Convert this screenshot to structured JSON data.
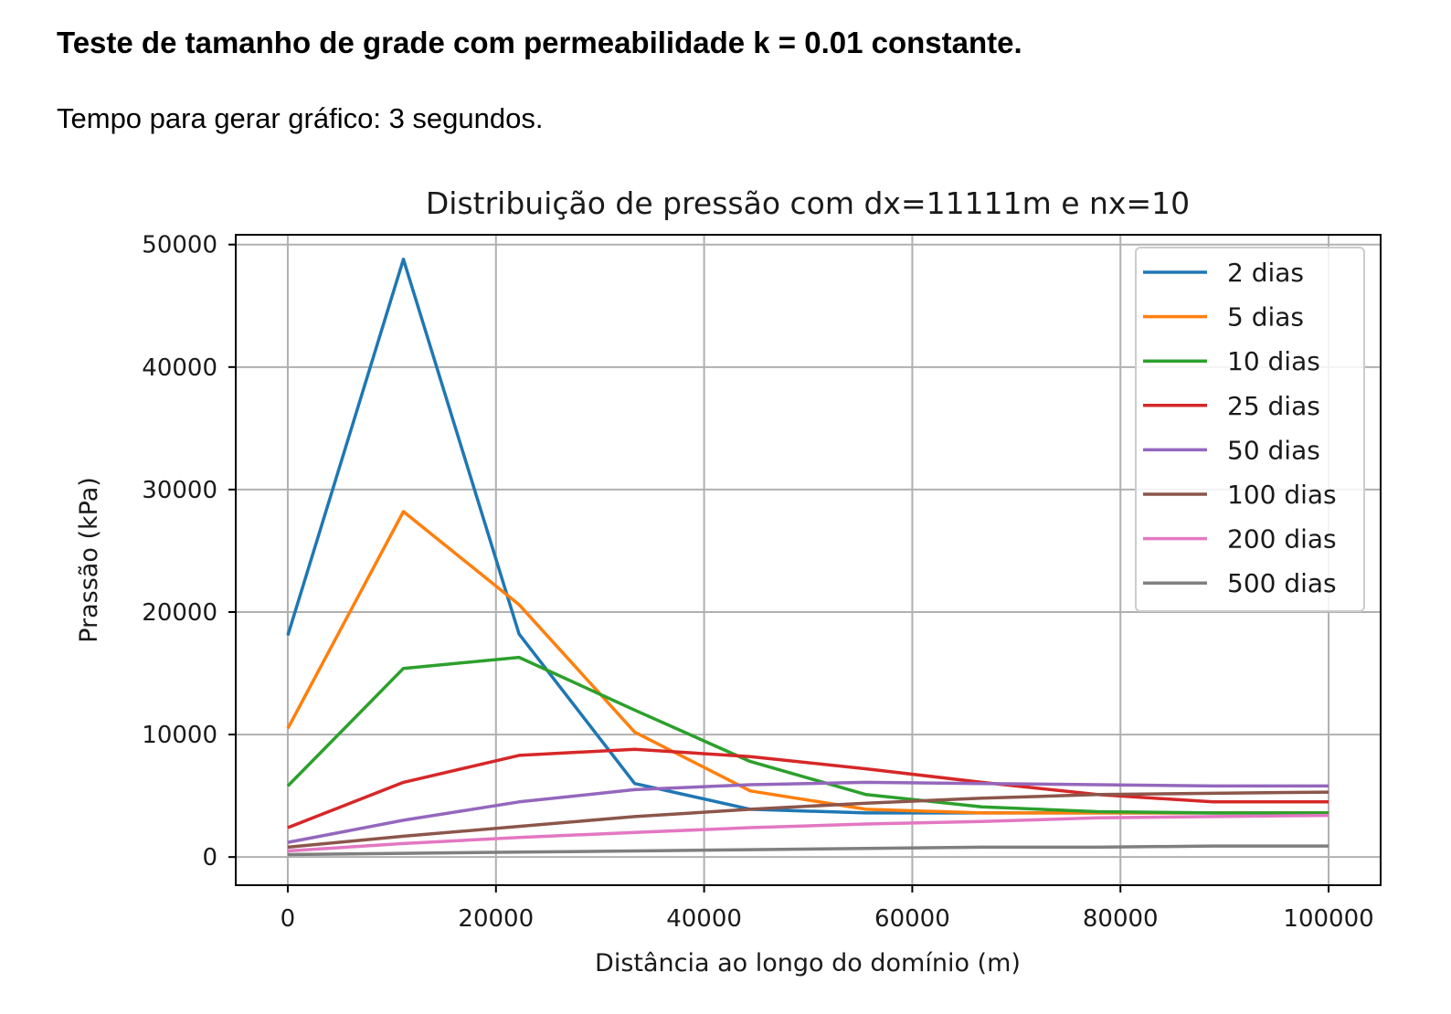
{
  "document": {
    "heading": "Teste de tamanho de grade com permeabilidade k = 0.01 constante.",
    "subheading": "Tempo para gerar gráfico: 3 segundos."
  },
  "chart_data": {
    "type": "line",
    "title": "Distribuição de pressão com dx=11111m e nx=10",
    "xlabel": "Distância ao longo do domínio (m)",
    "ylabel": "Prassão (kPa)",
    "xlim": [
      -5000,
      105000
    ],
    "ylim": [
      -2300,
      50800
    ],
    "xticks": [
      0,
      20000,
      40000,
      60000,
      80000,
      100000
    ],
    "xtick_labels": [
      "0",
      "20000",
      "40000",
      "60000",
      "80000",
      "100000"
    ],
    "yticks": [
      0,
      10000,
      20000,
      30000,
      40000,
      50000
    ],
    "ytick_labels": [
      "0",
      "10000",
      "20000",
      "30000",
      "40000",
      "50000"
    ],
    "grid": true,
    "legend_position": "top-right",
    "x": [
      0,
      11111,
      22222,
      33333,
      44444,
      55556,
      66667,
      77778,
      88889,
      100000
    ],
    "series": [
      {
        "name": "2 dias",
        "color": "#1f77b4",
        "values": [
          18100,
          48800,
          18200,
          6000,
          3900,
          3600,
          3600,
          3600,
          3600,
          3600
        ]
      },
      {
        "name": "5 dias",
        "color": "#ff7f0e",
        "values": [
          10500,
          28200,
          20600,
          10200,
          5400,
          3900,
          3600,
          3600,
          3600,
          3600
        ]
      },
      {
        "name": "10 dias",
        "color": "#2ca02c",
        "values": [
          5800,
          15400,
          16300,
          12000,
          7800,
          5100,
          4100,
          3700,
          3600,
          3600
        ]
      },
      {
        "name": "25 dias",
        "color": "#d62728",
        "values": [
          2400,
          6100,
          8300,
          8800,
          8200,
          7200,
          6100,
          5100,
          4500,
          4500
        ]
      },
      {
        "name": "50 dias",
        "color": "#9467bd",
        "values": [
          1200,
          3000,
          4500,
          5500,
          5900,
          6100,
          6000,
          5900,
          5800,
          5800
        ]
      },
      {
        "name": "100 dias",
        "color": "#8c564b",
        "values": [
          800,
          1700,
          2500,
          3300,
          3900,
          4400,
          4800,
          5100,
          5200,
          5300
        ]
      },
      {
        "name": "200 dias",
        "color": "#e377c2",
        "values": [
          500,
          1100,
          1600,
          2000,
          2400,
          2700,
          2900,
          3200,
          3300,
          3400
        ]
      },
      {
        "name": "500 dias",
        "color": "#7f7f7f",
        "values": [
          200,
          300,
          400,
          500,
          600,
          700,
          800,
          800,
          900,
          900
        ]
      }
    ]
  }
}
